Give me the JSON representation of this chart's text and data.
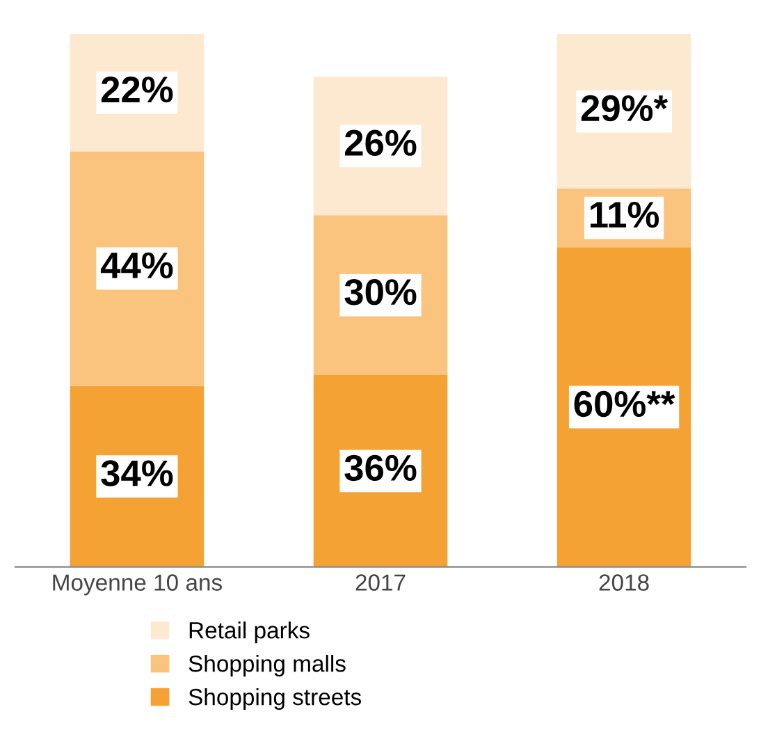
{
  "chart_data": {
    "type": "bar",
    "stacked": true,
    "categories": [
      "Moyenne 10 ans",
      "2017",
      "2018"
    ],
    "series": [
      {
        "name": "Shopping streets",
        "color": "#f5a234",
        "values": [
          34,
          36,
          60
        ],
        "value_labels": [
          "34%",
          "36%",
          "60%**"
        ]
      },
      {
        "name": "Shopping malls",
        "color": "#fbc47e",
        "values": [
          44,
          30,
          11
        ],
        "value_labels": [
          "44%",
          "30%",
          "11%"
        ]
      },
      {
        "name": "Retail parks",
        "color": "#fde9cf",
        "values": [
          22,
          26,
          29
        ],
        "value_labels": [
          "22%",
          "26%",
          "29%*"
        ]
      }
    ],
    "legend": "bottom",
    "grid": false
  }
}
